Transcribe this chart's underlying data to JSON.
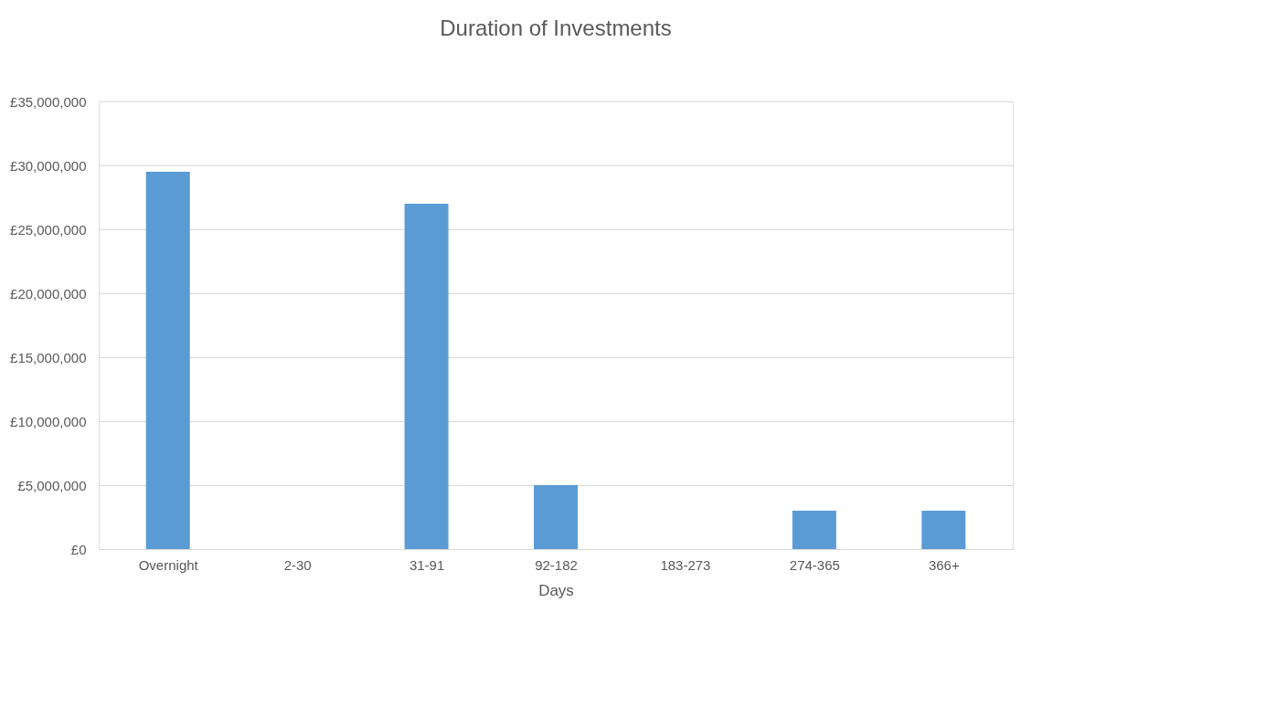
{
  "chart_data": {
    "type": "bar",
    "title": "Duration of Investments",
    "xlabel": "Days",
    "categories": [
      "Overnight",
      "2-30",
      "31-91",
      "92-182",
      "183-273",
      "274-365",
      "366+"
    ],
    "values": [
      29500000,
      0,
      27000000,
      5000000,
      0,
      3000000,
      3000000
    ],
    "color": "#5b9bd5",
    "ylim": [
      0,
      35000000
    ],
    "yticks": [
      {
        "value": 0,
        "label": "£0"
      },
      {
        "value": 5000000,
        "label": "£5,000,000"
      },
      {
        "value": 10000000,
        "label": "£10,000,000"
      },
      {
        "value": 15000000,
        "label": "£15,000,000"
      },
      {
        "value": 20000000,
        "label": "£20,000,000"
      },
      {
        "value": 25000000,
        "label": "£25,000,000"
      },
      {
        "value": 30000000,
        "label": "£30,000,000"
      },
      {
        "value": 35000000,
        "label": "£35,000,000"
      }
    ],
    "grid": "y"
  }
}
